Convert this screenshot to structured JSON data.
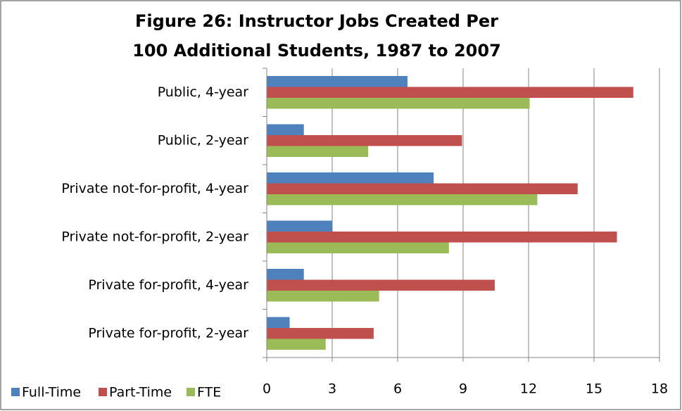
{
  "chart_data": {
    "type": "hbar",
    "title": [
      "Figure 26: Instructor Jobs Created Per",
      "100 Additional Students, 1987 to 2007"
    ],
    "categories": [
      "Public, 4-year",
      "Public, 2-year",
      "Private not-for-profit, 4-year",
      "Private not-for-profit, 2-year",
      "Private for-profit, 4-year",
      "Private for-profit, 2-year"
    ],
    "series": [
      {
        "name": "Full-Time",
        "color": "#4f81bd",
        "values": [
          6.45,
          1.7,
          7.65,
          3.0,
          1.7,
          1.05
        ]
      },
      {
        "name": "Part-Time",
        "color": "#c0504d",
        "values": [
          16.8,
          8.95,
          14.25,
          16.05,
          10.45,
          4.9
        ]
      },
      {
        "name": "FTE",
        "color": "#9bbb59",
        "values": [
          12.05,
          4.65,
          12.4,
          8.35,
          5.15,
          2.7
        ]
      }
    ],
    "xlim": [
      0,
      18
    ],
    "xticks": [
      0,
      3,
      6,
      9,
      12,
      15,
      18
    ],
    "grid": true,
    "legend": "bottom-left"
  }
}
